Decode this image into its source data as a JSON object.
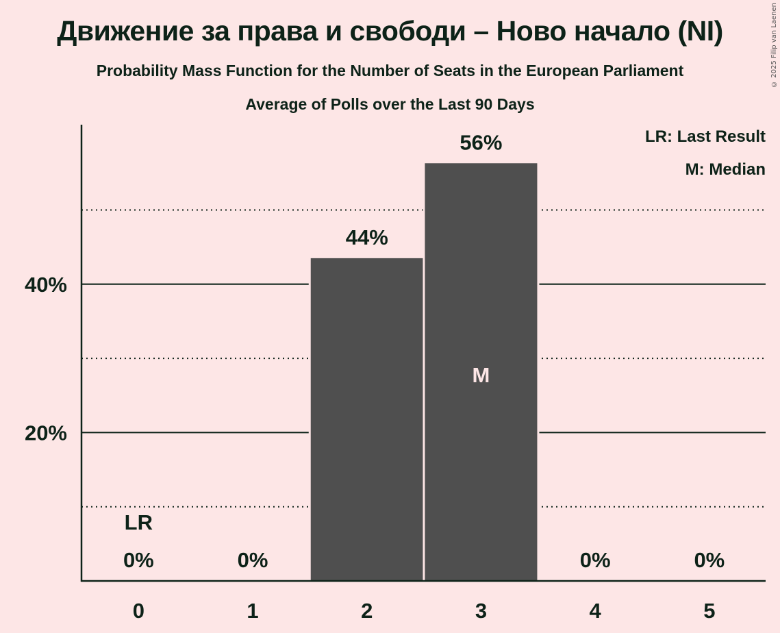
{
  "header": {
    "title": "Движение за права и свободи – Ново начало (NI)",
    "subtitle": "Probability Mass Function for the Number of Seats in the European Parliament",
    "subtitle2": "Average of Polls over the Last 90 Days",
    "copyright": "© 2025 Filip van Laenen"
  },
  "legend": {
    "lr": "LR: Last Result",
    "m": "M: Median"
  },
  "colors": {
    "background": "#fde6e6",
    "bar": "#4f4f4f",
    "text": "#0d2218",
    "median_label": "#fde6e6"
  },
  "chart_data": {
    "type": "bar",
    "title": "Движение за права и свободи – Ново начало (NI)",
    "subtitle": "Probability Mass Function for the Number of Seats in the European Parliament — Average of Polls over the Last 90 Days",
    "xlabel": "",
    "ylabel": "",
    "categories": [
      "0",
      "1",
      "2",
      "3",
      "4",
      "5"
    ],
    "values": [
      0,
      0,
      43.5,
      56.3,
      0,
      0
    ],
    "value_labels": [
      "0%",
      "0%",
      "44%",
      "56%",
      "0%",
      "0%"
    ],
    "ylim": [
      0,
      61
    ],
    "yticks": [
      {
        "value": 20,
        "label": "20%"
      },
      {
        "value": 40,
        "label": "40%"
      }
    ],
    "minor_gridlines": [
      10,
      30,
      50
    ],
    "grid": true,
    "annotations": [
      {
        "category": "0",
        "label": "LR",
        "meaning": "Last Result"
      },
      {
        "category": "3",
        "label": "M",
        "meaning": "Median"
      }
    ],
    "legend_position": "top-right"
  }
}
